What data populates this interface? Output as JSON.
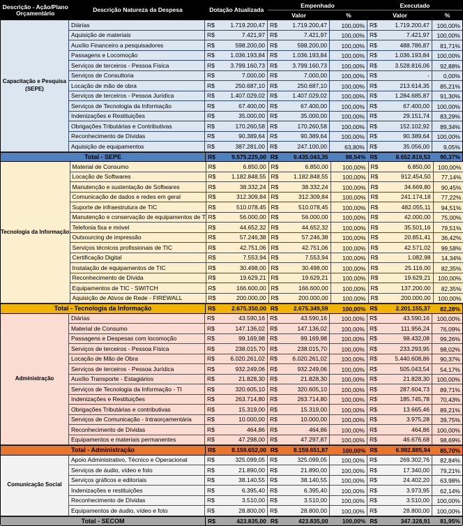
{
  "header": {
    "col_section": "Descrição - Ação/Plano Orçamentário",
    "col_nature": "Descrição Natureza da Despesa",
    "col_dotacao": "Dotação Atualizada",
    "col_empenhado": "Empenhado",
    "col_executado": "Executado",
    "sub_valor": "Valor",
    "sub_pct": "%",
    "currency": "R$",
    "header_bg": "#000000",
    "header_text": "#ffffff"
  },
  "sections": [
    {
      "id": "sepe",
      "label_lines": [
        "Capacitação e Pesquisa",
        "(SEPE)"
      ],
      "colors": {
        "row_bg": "#DCE6F1",
        "border": "#2F4A6E",
        "total_bg": "#4E81BD"
      },
      "rows": [
        {
          "nature": "Diárias",
          "dot": "1.719.200,47",
          "emp": "1.719.200,47",
          "emp_pct": "100,00%",
          "exe": "1.719.200,47",
          "exe_pct": "100,00%"
        },
        {
          "nature": "Aquisição de materiais",
          "dot": "7.421,97",
          "emp": "7.421,97",
          "emp_pct": "100,00%",
          "exe": "7.421,97",
          "exe_pct": "100,00%"
        },
        {
          "nature": "Auxílio Financeiro a pesquisadores",
          "dot": "598.200,00",
          "emp": "598.200,00",
          "emp_pct": "100,00%",
          "exe": "488.786,87",
          "exe_pct": "81,71%"
        },
        {
          "nature": "Passagens e Locomoção",
          "dot": "1.036.193,84",
          "emp": "1.036.193,84",
          "emp_pct": "100,00%",
          "exe": "1.036.193,84",
          "exe_pct": "100,00%"
        },
        {
          "nature": "Serviços de terceiros - Pessoa Física",
          "dot": "3.799.160,73",
          "emp": "3.799.160,73",
          "emp_pct": "100,00%",
          "exe": "3.528.816,06",
          "exe_pct": "92,88%"
        },
        {
          "nature": "Serviços de Consultoria",
          "dot": "7.000,00",
          "emp": "7.000,00",
          "emp_pct": "100,00%",
          "exe": "-",
          "exe_pct": "0,00%"
        },
        {
          "nature": "Locação de mão de obra",
          "dot": "250.687,10",
          "emp": "250.687,10",
          "emp_pct": "100,00%",
          "exe": "213.614,35",
          "exe_pct": "85,21%"
        },
        {
          "nature": "Serviços de terceiros - Pessoa Jurídica",
          "dot": "1.407.029,02",
          "emp": "1.407.029,02",
          "emp_pct": "100,00%",
          "exe": "1.284.685,87",
          "exe_pct": "91,30%"
        },
        {
          "nature": "Serviços de Tecnologia da Informação",
          "dot": "67.400,00",
          "emp": "67.400,00",
          "emp_pct": "100,00%",
          "exe": "67.400,00",
          "exe_pct": "100,00%"
        },
        {
          "nature": "Indenizações e Restituições",
          "dot": "35.000,00",
          "emp": "35.000,00",
          "emp_pct": "100,00%",
          "exe": "29.151,74",
          "exe_pct": "83,29%"
        },
        {
          "nature": "Obrigações Tributárias e Contributivas",
          "dot": "170.260,58",
          "emp": "170.260,58",
          "emp_pct": "100,00%",
          "exe": "152.102,92",
          "exe_pct": "89,34%"
        },
        {
          "nature": "Reconhecimento de Dívidas",
          "dot": "90.389,64",
          "emp": "90.389,64",
          "emp_pct": "100,00%",
          "exe": "90.389,64",
          "exe_pct": "100,00%"
        },
        {
          "nature": "Aquisição de equipamentos",
          "dot": "387.281,00",
          "emp": "247.100,00",
          "emp_pct": "63,80%",
          "exe": "35.056,00",
          "exe_pct": "9,05%"
        }
      ],
      "total": {
        "label": "Total - SEPE",
        "dot": "9.575.225,00",
        "emp": "9.435.043,35",
        "emp_pct": "98,54%",
        "exe": "8.652.819,53",
        "exe_pct": "90,37%"
      }
    },
    {
      "id": "tic",
      "label_lines": [
        "Tecnologia da Informação"
      ],
      "colors": {
        "row_bg": "#FBEFCD",
        "border": "#4d4d4d",
        "total_bg": "#F0B400"
      },
      "rows": [
        {
          "nature": "Material de Consumo",
          "dot": "6.850,00",
          "emp": "6.850,00",
          "emp_pct": "100,00%",
          "exe": "6.850,00",
          "exe_pct": "100,00%"
        },
        {
          "nature": "Locação de Softwares",
          "dot": "1.182.848,55",
          "emp": "1.182.848,55",
          "emp_pct": "100,00%",
          "exe": "912.454,50",
          "exe_pct": "77,14%"
        },
        {
          "nature": "Manutenção e sustentação de Softwares",
          "dot": "38.332,24",
          "emp": "38.332,24",
          "emp_pct": "100,00%",
          "exe": "34.669,80",
          "exe_pct": "90,45%"
        },
        {
          "nature": "Comunicação de dados e redes em geral",
          "dot": "312.309,84",
          "emp": "312.309,84",
          "emp_pct": "100,00%",
          "exe": "241.174,18",
          "exe_pct": "77,22%"
        },
        {
          "nature": "Suporte de infraestrutura de TIC",
          "dot": "510.078,45",
          "emp": "510.078,45",
          "emp_pct": "100,00%",
          "exe": "482.055,11",
          "exe_pct": "94,51%"
        },
        {
          "nature": "Manutenção e conservação de equipamentos de TIC",
          "dot": "56.000,00",
          "emp": "56.000,00",
          "emp_pct": "100,00%",
          "exe": "42.000,00",
          "exe_pct": "75,00%"
        },
        {
          "nature": "Telefonia fixa e móvel",
          "dot": "44.652,32",
          "emp": "44.652,32",
          "emp_pct": "100,00%",
          "exe": "35.501,16",
          "exe_pct": "79,51%"
        },
        {
          "nature": "Outsourcing de impressão",
          "dot": "57.246,38",
          "emp": "57.246,38",
          "emp_pct": "100,00%",
          "exe": "20.851,41",
          "exe_pct": "36,42%"
        },
        {
          "nature": "Serviços técnicos profissionais de TIC",
          "dot": "42.751,06",
          "emp": "42.751,06",
          "emp_pct": "100,00%",
          "exe": "42.571,02",
          "exe_pct": "99,58%"
        },
        {
          "nature": "Certificação Digital",
          "dot": "7.553,94",
          "emp": "7.553,94",
          "emp_pct": "100,00%",
          "exe": "1.082,98",
          "exe_pct": "14,34%"
        },
        {
          "nature": "Instalação de equipamentos de TIC",
          "dot": "30.498,00",
          "emp": "30.498,00",
          "emp_pct": "100,00%",
          "exe": "25.116,00",
          "exe_pct": "82,35%"
        },
        {
          "nature": "Reconhecimento de Dívida",
          "dot": "19.629,21",
          "emp": "19.629,21",
          "emp_pct": "100,00%",
          "exe": "19.629,21",
          "exe_pct": "100,00%"
        },
        {
          "nature": "Equipamentos de TIC - SWITCH",
          "dot": "166.600,00",
          "emp": "166.600,00",
          "emp_pct": "100,00%",
          "exe": "137.200,00",
          "exe_pct": "82,35%"
        },
        {
          "nature": "Aquisição de Ativos de Rede - FIREWALL",
          "dot": "200.000,00",
          "emp": "200.000,00",
          "emp_pct": "100,00%",
          "exe": "200.000,00",
          "exe_pct": "100,00%"
        }
      ],
      "total": {
        "label": "Total - Tecnologia da Informação",
        "dot": "2.675.350,00",
        "emp": "2.675.349,59",
        "emp_pct": "100,00%",
        "exe": "2.201.155,37",
        "exe_pct": "82,28%"
      }
    },
    {
      "id": "admin",
      "label_lines": [
        "Administração"
      ],
      "colors": {
        "row_bg": "#FADCD2",
        "border": "#4d4d4d",
        "total_bg": "#E8762C"
      },
      "rows": [
        {
          "nature": "Diárias",
          "dot": "43.590,16",
          "emp": "43.590,16",
          "emp_pct": "100,00%",
          "exe": "43.590,16",
          "exe_pct": "100,00%"
        },
        {
          "nature": "Material de Consumo",
          "dot": "147.136,02",
          "emp": "147.136,02",
          "emp_pct": "100,00%",
          "exe": "111.956,24",
          "exe_pct": "76,09%"
        },
        {
          "nature": "Passagens e Despesas com locomoção",
          "dot": "99.169,98",
          "emp": "99.169,98",
          "emp_pct": "100,00%",
          "exe": "98.432,08",
          "exe_pct": "99,26%"
        },
        {
          "nature": "Serviços de terceiros - Pessoa Física",
          "dot": "238.015,70",
          "emp": "238.015,70",
          "emp_pct": "100,00%",
          "exe": "233.293,95",
          "exe_pct": "98,02%"
        },
        {
          "nature": "Locação de Mão de Obra",
          "dot": "6.020.261,02",
          "emp": "6.020.261,02",
          "emp_pct": "100,00%",
          "exe": "5.440.608,86",
          "exe_pct": "90,37%"
        },
        {
          "nature": "Serviços de terceiros - Pessoa Jurídica",
          "dot": "932.249,06",
          "emp": "932.249,06",
          "emp_pct": "100,00%",
          "exe": "505.043,54",
          "exe_pct": "54,17%"
        },
        {
          "nature": "Auxílio Transporte - Estagiários",
          "dot": "21.828,30",
          "emp": "21.828,30",
          "emp_pct": "100,00%",
          "exe": "21.828,30",
          "exe_pct": "100,00%"
        },
        {
          "nature": "Serviços de Tecnologia da Informação - TI",
          "dot": "320.605,10",
          "emp": "320.605,10",
          "emp_pct": "100,00%",
          "exe": "287.604,73",
          "exe_pct": "89,71%"
        },
        {
          "nature": "Indenizações e Restituições",
          "dot": "263.714,80",
          "emp": "263.714,80",
          "emp_pct": "100,00%",
          "exe": "185.745,78",
          "exe_pct": "70,43%"
        },
        {
          "nature": "Obrigações Tributárias e contributivas",
          "dot": "15.319,00",
          "emp": "15.319,00",
          "emp_pct": "100,00%",
          "exe": "13.665,46",
          "exe_pct": "89,21%"
        },
        {
          "nature": "Serviços de Comunicação - Intraorçamentária",
          "dot": "10.000,00",
          "emp": "10.000,00",
          "emp_pct": "100,00%",
          "exe": "3.975,28",
          "exe_pct": "39,75%"
        },
        {
          "nature": "Reconhecimento de Dívidas",
          "dot": "464,86",
          "emp": "464,86",
          "emp_pct": "100,00%",
          "exe": "464,86",
          "exe_pct": "100,00%"
        },
        {
          "nature": "Equipamentos e materiais permanentes",
          "dot": "47.298,00",
          "emp": "47.297,87",
          "emp_pct": "100,00%",
          "exe": "46.676,68",
          "exe_pct": "98,69%"
        }
      ],
      "total": {
        "label": "Total - Administração",
        "dot": "8.159.652,00",
        "emp": "8.159.651,87",
        "emp_pct": "100,00%",
        "exe": "6.992.885,94",
        "exe_pct": "85,70%"
      }
    },
    {
      "id": "secom",
      "label_lines": [
        "Comunicação Social"
      ],
      "colors": {
        "row_bg": "#F2F2F2",
        "border": "#4d4d4d",
        "total_bg": "#A6A6A6"
      },
      "rows": [
        {
          "nature": "Apoio Administrativo, Técnico e Operacional",
          "dot": "325.099,05",
          "emp": "325.099,05",
          "emp_pct": "100,00%",
          "exe": "269.302,76",
          "exe_pct": "82,84%"
        },
        {
          "nature": "Serviços de áudio, vídeo e foto",
          "dot": "21.890,00",
          "emp": "21.890,00",
          "emp_pct": "100,00%",
          "exe": "17.340,00",
          "exe_pct": "79,21%"
        },
        {
          "nature": "Serviços gráficos e editoriais",
          "dot": "38.140,55",
          "emp": "38.140,55",
          "emp_pct": "100,00%",
          "exe": "24.402,20",
          "exe_pct": "63,98%"
        },
        {
          "nature": "Indenizações e restituições",
          "dot": "6.395,40",
          "emp": "6.395,40",
          "emp_pct": "100,00%",
          "exe": "3.973,95",
          "exe_pct": "62,14%"
        },
        {
          "nature": "Reconhecimento de Dívidas",
          "dot": "3.510,00",
          "emp": "3.510,00",
          "emp_pct": "100,00%",
          "exe": "3.510,00",
          "exe_pct": "100,00%"
        },
        {
          "nature": "Equipamentos de áudio, vídeo e foto",
          "dot": "28.800,00",
          "emp": "28.800,00",
          "emp_pct": "100,00%",
          "exe": "28.800,00",
          "exe_pct": "100,00%"
        }
      ],
      "total": {
        "label": "Total - SECOM",
        "dot": "423.835,00",
        "emp": "423.835,00",
        "emp_pct": "100,00%",
        "exe": "347.328,91",
        "exe_pct": "81,95%"
      }
    }
  ]
}
